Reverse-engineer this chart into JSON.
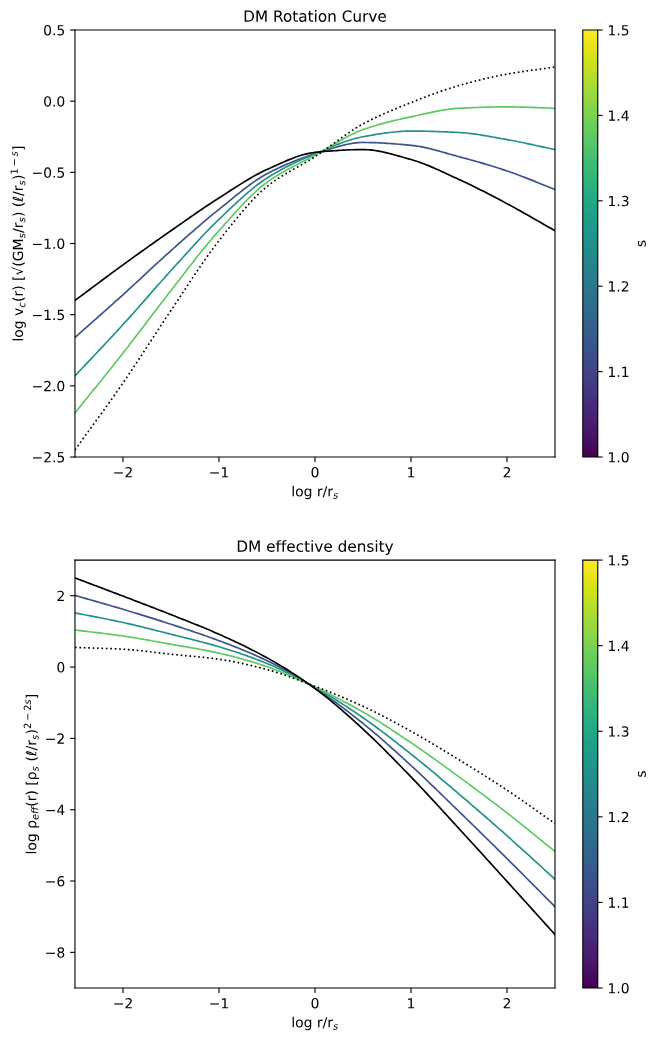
{
  "chart_data": [
    {
      "type": "line",
      "title": "DM Rotation Curve",
      "xlabel": "log r/r$_{s}$",
      "ylabel": "log v$_{c}$(r) [√(GM$_{s}$/r$_{s}$) (ℓ/r$_{s}$)$^{1−s}$]",
      "clabel": "s",
      "x": [
        -2.5,
        -2,
        -1.5,
        -1,
        -0.5,
        0,
        0.5,
        1,
        1.5,
        2,
        2.5
      ],
      "series": [
        {
          "color": "#3b528b",
          "line_style": "solid",
          "values": [
            -1.66,
            -1.36,
            -1.05,
            -0.76,
            -0.51,
            -0.37,
            -0.29,
            -0.31,
            -0.39,
            -0.49,
            -0.62
          ]
        },
        {
          "color": "#21918c",
          "line_style": "solid",
          "values": [
            -1.93,
            -1.57,
            -1.19,
            -0.83,
            -0.54,
            -0.37,
            -0.25,
            -0.21,
            -0.22,
            -0.27,
            -0.34
          ]
        },
        {
          "color": "#5ec962",
          "line_style": "solid",
          "values": [
            -2.19,
            -1.77,
            -1.33,
            -0.91,
            -0.57,
            -0.38,
            -0.2,
            -0.11,
            -0.05,
            -0.04,
            -0.05
          ]
        },
        {
          "color": "#000000",
          "line_style": "solid",
          "values": [
            -1.4,
            -1.15,
            -0.91,
            -0.68,
            -0.48,
            -0.36,
            -0.34,
            -0.41,
            -0.55,
            -0.72,
            -0.91
          ]
        },
        {
          "color": "#000000",
          "line_style": "dotted",
          "values": [
            -2.45,
            -1.98,
            -1.47,
            -0.98,
            -0.6,
            -0.39,
            -0.16,
            -0.01,
            0.11,
            0.19,
            0.24
          ]
        }
      ],
      "xlim": [
        -2.5,
        2.5
      ],
      "ylim": [
        -2.5,
        0.5
      ],
      "xticks": [
        -2,
        -1,
        0,
        1,
        2
      ],
      "yticks": [
        {
          "value": -2.5,
          "label": "−2.5"
        },
        {
          "value": -2,
          "label": "−2.0"
        },
        {
          "value": -1.5,
          "label": "−1.5"
        },
        {
          "value": -1,
          "label": "−1.0"
        },
        {
          "value": -0.5,
          "label": "−0.5"
        },
        {
          "value": 0,
          "label": "0.0"
        },
        0.5
      ],
      "clim": [
        1.0,
        1.5
      ],
      "cticks": [
        {
          "value": 1.0,
          "label": "1.0"
        },
        1.1,
        1.2,
        1.3,
        1.4,
        1.5
      ]
    },
    {
      "type": "line",
      "title": "DM effective density",
      "xlabel": "log r/r$_{s}$",
      "ylabel": "log ρ$_{eff}$(r) [ρ$_{s}$ (ℓ/r$_{s}$)$^{2−2s}$]",
      "clabel": "s",
      "x": [
        -2.5,
        -2,
        -1.5,
        -1,
        -0.5,
        0,
        0.5,
        1,
        1.5,
        2,
        2.5
      ],
      "series": [
        {
          "color": "#3b528b",
          "line_style": "solid",
          "values": [
            2.01,
            1.62,
            1.2,
            0.74,
            0.18,
            -0.59,
            -1.58,
            -2.76,
            -4.05,
            -5.37,
            -6.72
          ]
        },
        {
          "color": "#21918c",
          "line_style": "solid",
          "values": [
            1.52,
            1.25,
            0.92,
            0.57,
            0.1,
            -0.57,
            -1.42,
            -2.44,
            -3.56,
            -4.73,
            -5.95
          ]
        },
        {
          "color": "#5ec962",
          "line_style": "solid",
          "values": [
            1.04,
            0.87,
            0.64,
            0.39,
            0.01,
            -0.56,
            -1.26,
            -2.12,
            -3.08,
            -4.09,
            -5.17
          ]
        },
        {
          "color": "#000000",
          "line_style": "solid",
          "values": [
            2.5,
            1.99,
            1.47,
            0.92,
            0.26,
            -0.6,
            -1.74,
            -3.08,
            -4.53,
            -6.01,
            -7.5
          ]
        },
        {
          "color": "#000000",
          "line_style": "dotted",
          "values": [
            0.55,
            0.5,
            0.36,
            0.22,
            -0.07,
            -0.54,
            -1.1,
            -1.8,
            -2.6,
            -3.45,
            -4.39
          ]
        }
      ],
      "xlim": [
        -2.5,
        2.5
      ],
      "ylim": [
        -9,
        3
      ],
      "xticks": [
        -2,
        -1,
        0,
        1,
        2
      ],
      "yticks": [
        -8,
        -6,
        -4,
        -2,
        0,
        2
      ],
      "clim": [
        1.0,
        1.5
      ],
      "cticks": [
        {
          "value": 1.0,
          "label": "1.0"
        },
        1.1,
        1.2,
        1.3,
        1.4,
        1.5
      ]
    }
  ]
}
